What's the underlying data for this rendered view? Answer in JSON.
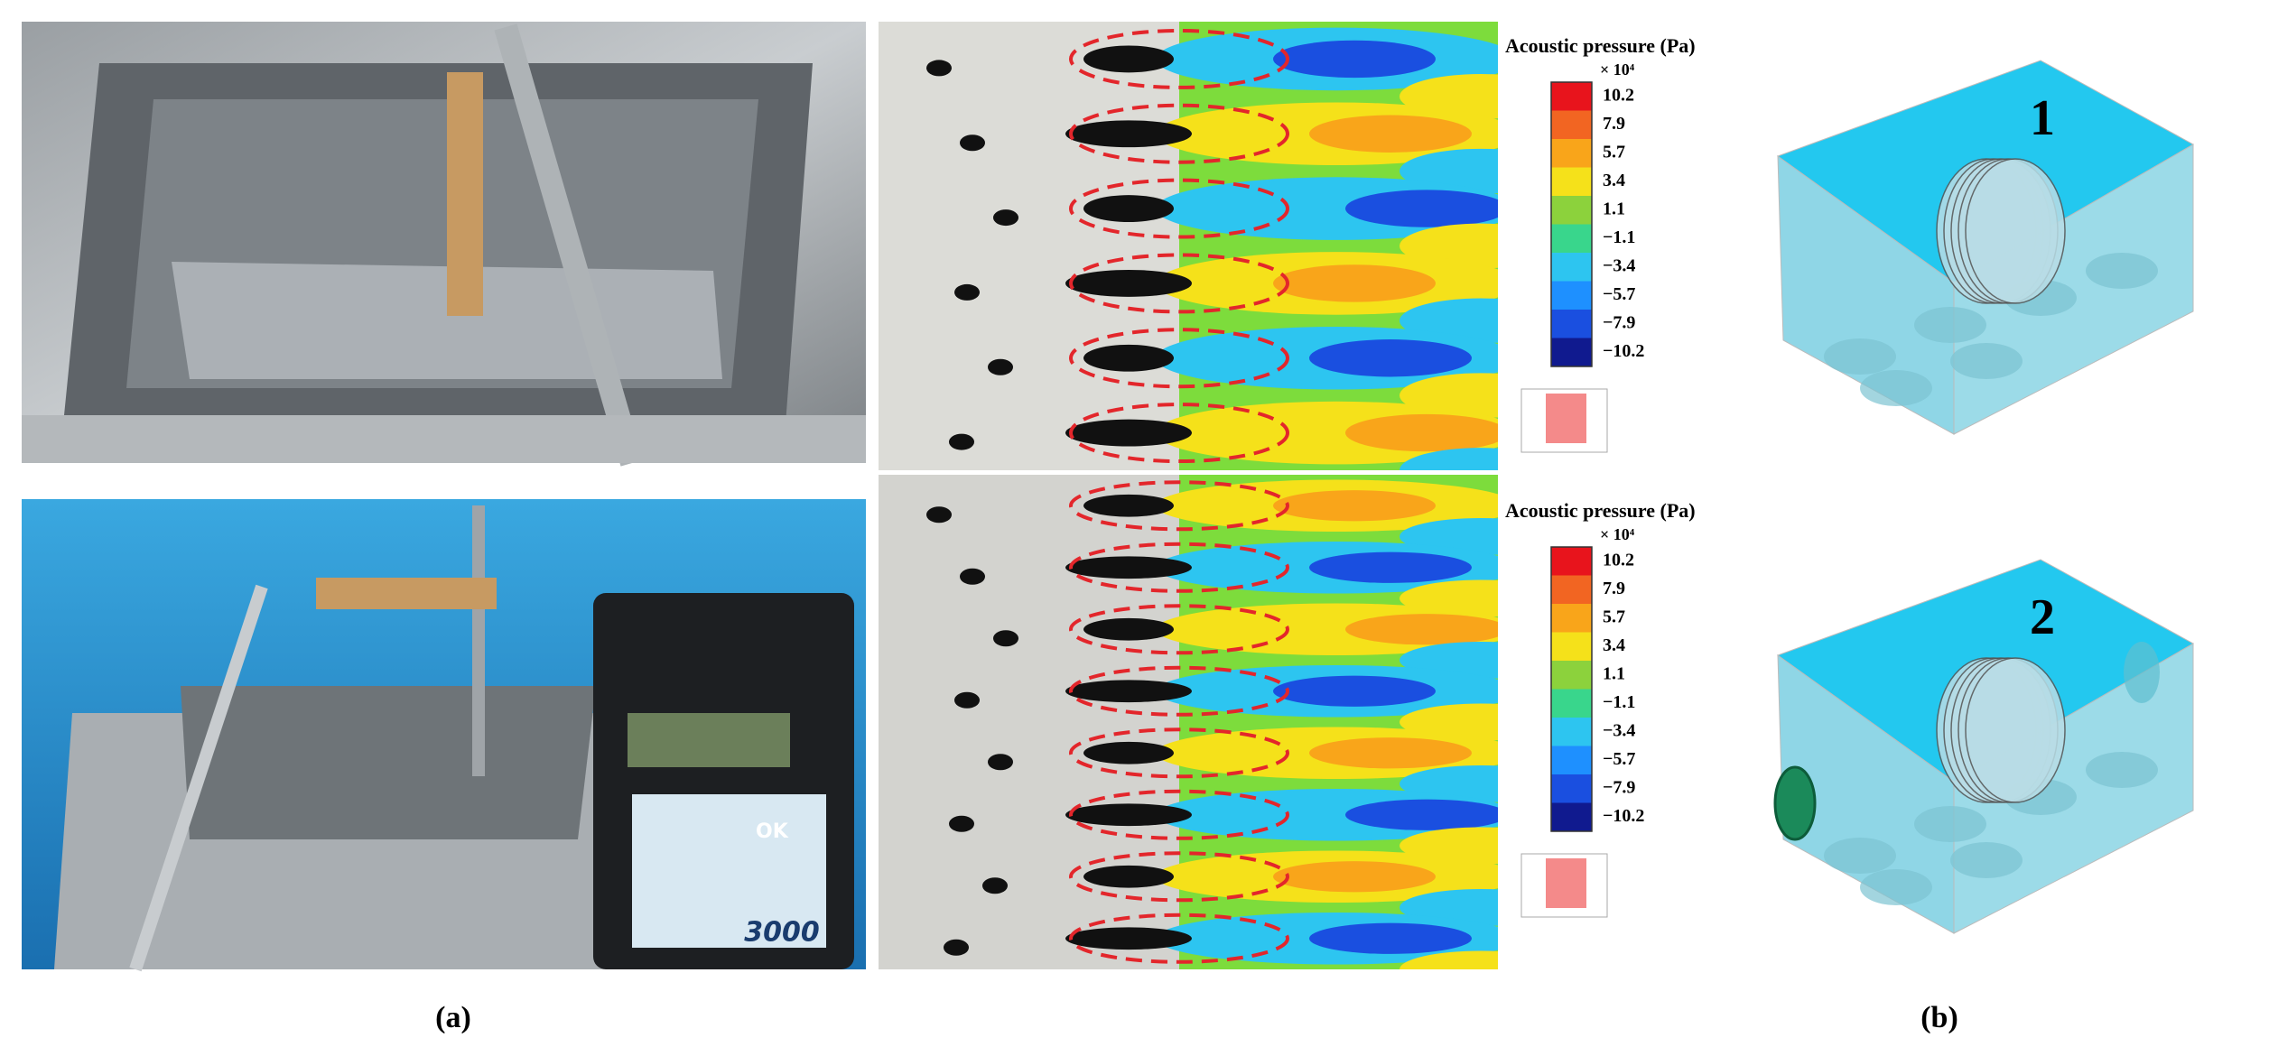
{
  "panel_a": {
    "label": "(a)",
    "colorbars": [
      {
        "title": "Acoustic pressure (Pa)",
        "multiplier": "× 10⁴",
        "ticks": [
          "10.2",
          "7.9",
          "5.7",
          "3.4",
          "1.1",
          "−1.1",
          "−3.4",
          "−5.7",
          "−7.9",
          "−10.2"
        ]
      },
      {
        "title": "Acoustic pressure (Pa)",
        "multiplier": "× 10⁴",
        "ticks": [
          "10.2",
          "7.9",
          "5.7",
          "3.4",
          "1.1",
          "−1.1",
          "−3.4",
          "−5.7",
          "−7.9",
          "−10.2"
        ]
      }
    ],
    "controller": {
      "button": "OK",
      "model": "3000"
    }
  },
  "panel_b": {
    "label": "(b)",
    "models": [
      {
        "label": "1"
      },
      {
        "label": "2"
      }
    ]
  }
}
